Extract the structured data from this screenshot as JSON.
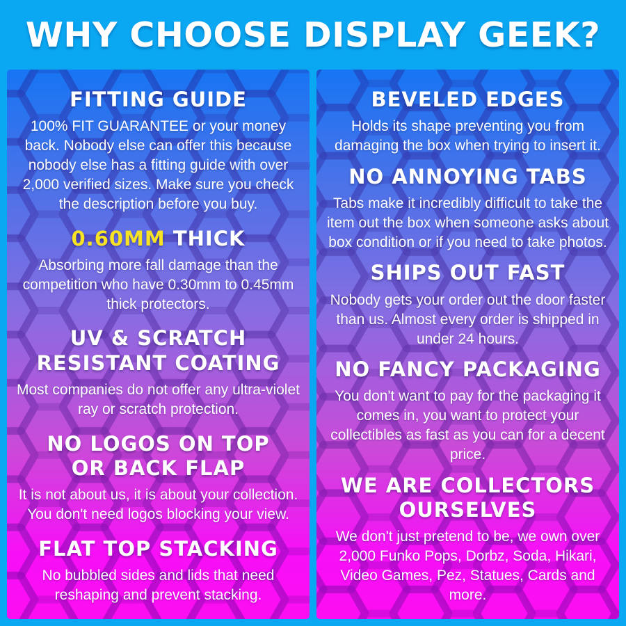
{
  "header": {
    "title": "WHY CHOOSE DISPLAY GEEK?"
  },
  "colors": {
    "background_blue": "#0aa7f2",
    "accent_yellow": "#f8e224",
    "text_white": "#ffffff",
    "panel_gradient_top": "#0b6ef2",
    "panel_gradient_mid_purple": "#8165e0",
    "panel_gradient_bottom_magenta": "#fd00f0"
  },
  "columns": [
    {
      "name": "left",
      "sections": [
        {
          "heading_parts": [
            {
              "text": "FITTING GUIDE"
            }
          ],
          "body": "100% FIT GUARANTEE or your money back. Nobody else can offer this because nobody else has a fitting guide with over 2,000 verified sizes. Make sure you check the description before you buy."
        },
        {
          "heading_parts": [
            {
              "text": "0.60MM",
              "accent": true
            },
            {
              "text": " THICK"
            }
          ],
          "body": "Absorbing more fall damage than the competition who have 0.30mm to 0.45mm thick protectors."
        },
        {
          "heading_parts": [
            {
              "text": "UV & SCRATCH",
              "break_after": true
            },
            {
              "text": "RESISTANT COATING"
            }
          ],
          "body": "Most companies do not offer any ultra-violet ray or scratch protection."
        },
        {
          "heading_parts": [
            {
              "text": "NO LOGOS ON TOP",
              "break_after": true
            },
            {
              "text": "OR BACK FLAP"
            }
          ],
          "body": "It is not about us, it is about your collection. You don't need logos blocking your view."
        },
        {
          "heading_parts": [
            {
              "text": "FLAT TOP STACKING"
            }
          ],
          "body": "No bubbled sides and lids that need reshaping and prevent stacking."
        }
      ]
    },
    {
      "name": "right",
      "sections": [
        {
          "heading_parts": [
            {
              "text": "BEVELED EDGES"
            }
          ],
          "body": "Holds its shape preventing you from damaging the box when trying to insert it."
        },
        {
          "heading_parts": [
            {
              "text": "NO ANNOYING TABS"
            }
          ],
          "body": "Tabs make it incredibly difficult to take the item out the box when someone asks about box condition or if you need to take photos."
        },
        {
          "heading_parts": [
            {
              "text": "SHIPS OUT FAST"
            }
          ],
          "body": "Nobody gets your order out the door faster than us. Almost every order is shipped in under 24 hours."
        },
        {
          "heading_parts": [
            {
              "text": "NO FANCY PACKAGING"
            }
          ],
          "body": "You don't want to pay for the packaging it comes in, you want to protect your collectibles as fast as you can for a decent price."
        },
        {
          "heading_parts": [
            {
              "text": "WE ARE COLLECTORS",
              "break_after": true
            },
            {
              "text": "OURSELVES"
            }
          ],
          "body": "We don't just pretend to be, we own over 2,000 Funko Pops, Dorbz, Soda, Hikari, Video Games, Pez, Statues, Cards and more."
        }
      ]
    }
  ]
}
